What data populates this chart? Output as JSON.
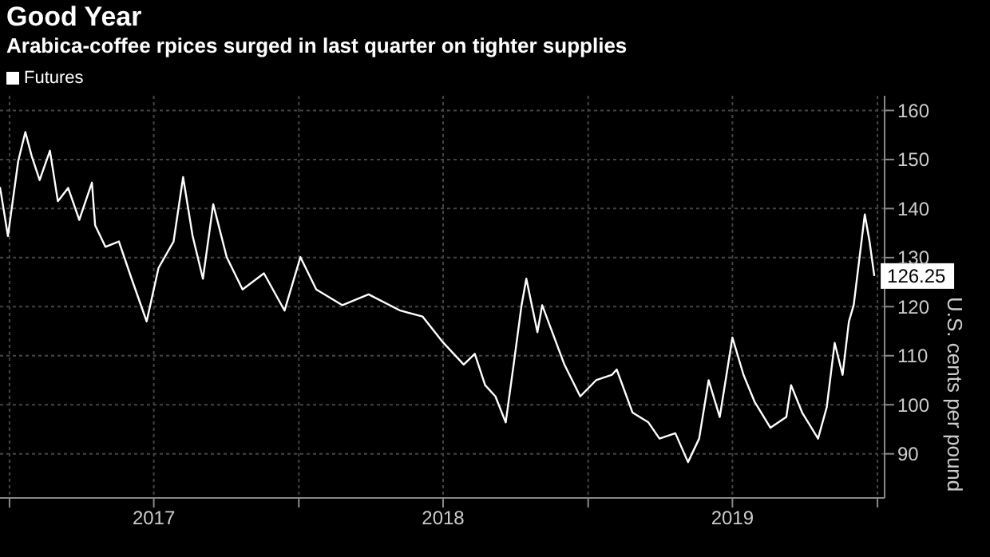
{
  "chart_data": {
    "type": "line",
    "title": "Good Year",
    "subtitle": "Arabica-coffee rpices surged in last quarter on tighter supplies",
    "ylabel": "U.S. cents per pound",
    "x": [
      "2016-12-20",
      "2016-12-30",
      "2017-01-12",
      "2017-01-21",
      "2017-01-29",
      "2017-02-08",
      "2017-02-21",
      "2017-03-03",
      "2017-03-16",
      "2017-03-30",
      "2017-04-15",
      "2017-04-19",
      "2017-05-02",
      "2017-05-19",
      "2017-06-04",
      "2017-06-23",
      "2017-07-08",
      "2017-07-27",
      "2017-08-08",
      "2017-08-20",
      "2017-09-02",
      "2017-09-15",
      "2017-10-02",
      "2017-10-22",
      "2017-11-18",
      "2017-12-14",
      "2018-01-03",
      "2018-01-23",
      "2018-02-25",
      "2018-03-30",
      "2018-05-09",
      "2018-06-06",
      "2018-07-02",
      "2018-07-28",
      "2018-08-11",
      "2018-08-24",
      "2018-09-06",
      "2018-09-19",
      "2018-09-29",
      "2018-10-09",
      "2018-10-15",
      "2018-10-29",
      "2018-11-04",
      "2018-12-02",
      "2018-12-22",
      "2019-01-11",
      "2019-01-31",
      "2019-02-06",
      "2019-02-26",
      "2019-03-18",
      "2019-04-01",
      "2019-04-21",
      "2019-05-07",
      "2019-05-21",
      "2019-06-02",
      "2019-06-16",
      "2019-07-02",
      "2019-07-16",
      "2019-07-30",
      "2019-08-19",
      "2019-09-08",
      "2019-09-14",
      "2019-09-28",
      "2019-10-18",
      "2019-10-29",
      "2019-11-08",
      "2019-11-18",
      "2019-11-26",
      "2019-12-02",
      "2019-12-16",
      "2019-12-22",
      "2019-12-28"
    ],
    "series": [
      {
        "name": "Futures",
        "color": "#ffffff",
        "values": [
          144.4,
          134.4,
          149.7,
          155.6,
          150.7,
          145.8,
          151.8,
          141.5,
          144.2,
          137.7,
          145.3,
          136.6,
          132.2,
          133.3,
          125.7,
          117,
          127.9,
          133.3,
          146.4,
          134.4,
          125.7,
          140.9,
          130.1,
          123.5,
          126.8,
          119.2,
          130.1,
          123.5,
          120.3,
          122.5,
          119.2,
          118,
          112.7,
          108.2,
          110.4,
          104,
          101.7,
          96.4,
          108.2,
          120.3,
          125.7,
          114.8,
          120.3,
          108.2,
          101.7,
          105,
          106.1,
          107.2,
          98.4,
          96.4,
          93.1,
          94.2,
          88.3,
          93.1,
          105,
          97.5,
          113.7,
          106.1,
          100.6,
          95.3,
          97.5,
          104,
          98.4,
          93.1,
          99.5,
          112.6,
          106.1,
          117,
          120.3,
          138.8,
          133.3,
          126.25
        ]
      }
    ],
    "xlim": [
      "2016-12-20",
      "2020-01-10"
    ],
    "xticks": [
      {
        "value": "2017-01-01",
        "label": null
      },
      {
        "value": "2017-07-02",
        "label": "2017"
      },
      {
        "value": "2018-01-01",
        "label": null
      },
      {
        "value": "2018-07-02",
        "label": "2018"
      },
      {
        "value": "2019-01-01",
        "label": null
      },
      {
        "value": "2019-07-02",
        "label": "2019"
      },
      {
        "value": "2020-01-01",
        "label": null
      }
    ],
    "ylim": [
      81,
      163
    ],
    "yticks": [
      90,
      100,
      110,
      120,
      130,
      140,
      150,
      160
    ],
    "annotations": [
      {
        "text": "126.25",
        "x": "2019-12-28",
        "y": 126.25
      }
    ],
    "grid": true,
    "legend": "top left",
    "marker": "none",
    "line_style": "solid"
  }
}
